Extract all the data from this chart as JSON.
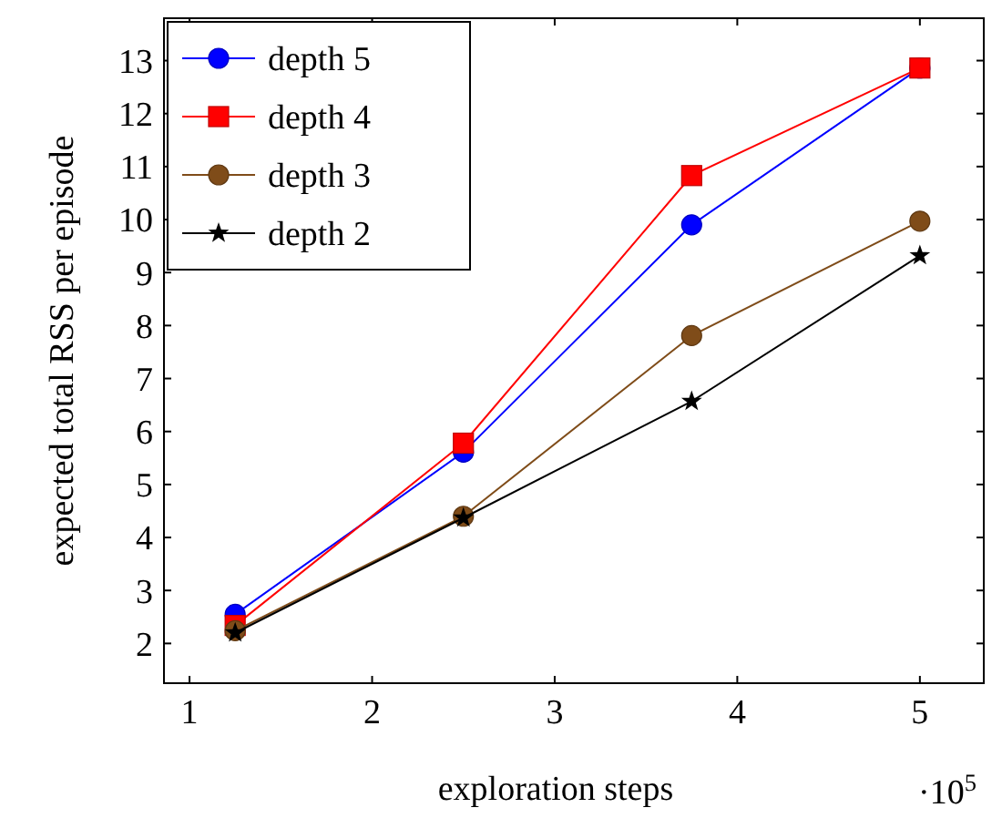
{
  "chart_data": {
    "type": "line",
    "xlabel": "exploration steps",
    "ylabel": "expected total RSS per episode",
    "annotations": [
      "·10$^{5}$"
    ],
    "x": [
      1.25,
      2.5,
      3.75,
      5
    ],
    "xlim": [
      0.86,
      5.35
    ],
    "xticks": [
      1,
      2,
      3,
      4,
      5
    ],
    "ylim": [
      1.25,
      13.8
    ],
    "yticks": [
      2,
      3,
      4,
      5,
      6,
      7,
      8,
      9,
      10,
      11,
      12,
      13
    ],
    "grid": false,
    "legend": "top left",
    "line_style": "solid",
    "series": [
      {
        "name": "depth 5",
        "color": "#0000ff",
        "marker": "circle",
        "values": [
          2.55,
          5.61,
          9.9,
          12.86
        ]
      },
      {
        "name": "depth 4",
        "color": "#ff0000",
        "marker": "square",
        "values": [
          2.34,
          5.78,
          10.83,
          12.86
        ]
      },
      {
        "name": "depth 3",
        "color": "#7f4c19",
        "marker": "circle",
        "values": [
          2.24,
          4.4,
          7.81,
          9.97
        ]
      },
      {
        "name": "depth 2",
        "color": "#000000",
        "marker": "star",
        "values": [
          2.2,
          4.37,
          6.57,
          9.32
        ]
      }
    ]
  }
}
